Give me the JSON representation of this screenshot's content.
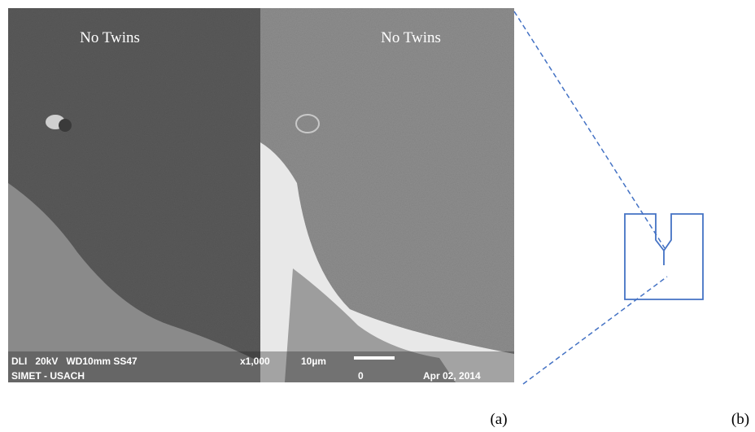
{
  "images": [
    {
      "label": "No Twins"
    },
    {
      "label": "No Twins"
    }
  ],
  "sem_info": {
    "line1": "DLI   20kV   WD10mm SS47",
    "line2": "SIMET - USACH",
    "magnification": "x1,000",
    "scale": "10µm",
    "zero": "0",
    "date": "Apr 02, 2014"
  },
  "captions": [
    "(a)",
    "(b)"
  ]
}
